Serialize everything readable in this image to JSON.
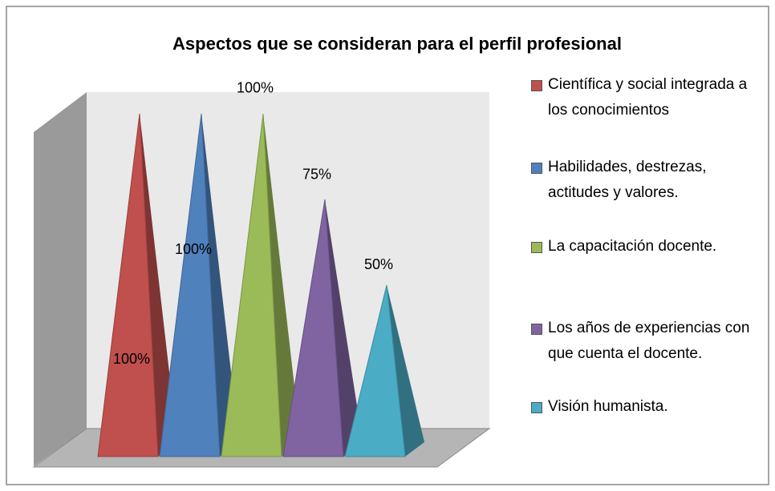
{
  "chart_data": {
    "type": "pyramid",
    "title": "Aspectos que se consideran  para el perfil profesional",
    "ylim": [
      0,
      100
    ],
    "series": [
      {
        "name": "Científica y social integrada a los conocimientos",
        "color": "#c0504d",
        "values": [
          100
        ],
        "value_labels": [
          "100%"
        ]
      },
      {
        "name": "Habilidades, destrezas, actitudes y valores.",
        "color": "#4f81bd",
        "values": [
          100
        ],
        "value_labels": [
          "100%"
        ]
      },
      {
        "name": "La capacitación docente.",
        "color": "#9bbb59",
        "values": [
          100
        ],
        "value_labels": [
          "100%"
        ]
      },
      {
        "name": "Los años de experiencias con que cuenta el docente.",
        "color": "#8064a2",
        "values": [
          75
        ],
        "value_labels": [
          "75%"
        ]
      },
      {
        "name": "Visión humanista.",
        "color": "#4bacc6",
        "values": [
          50
        ],
        "value_labels": [
          "50%"
        ]
      }
    ]
  }
}
